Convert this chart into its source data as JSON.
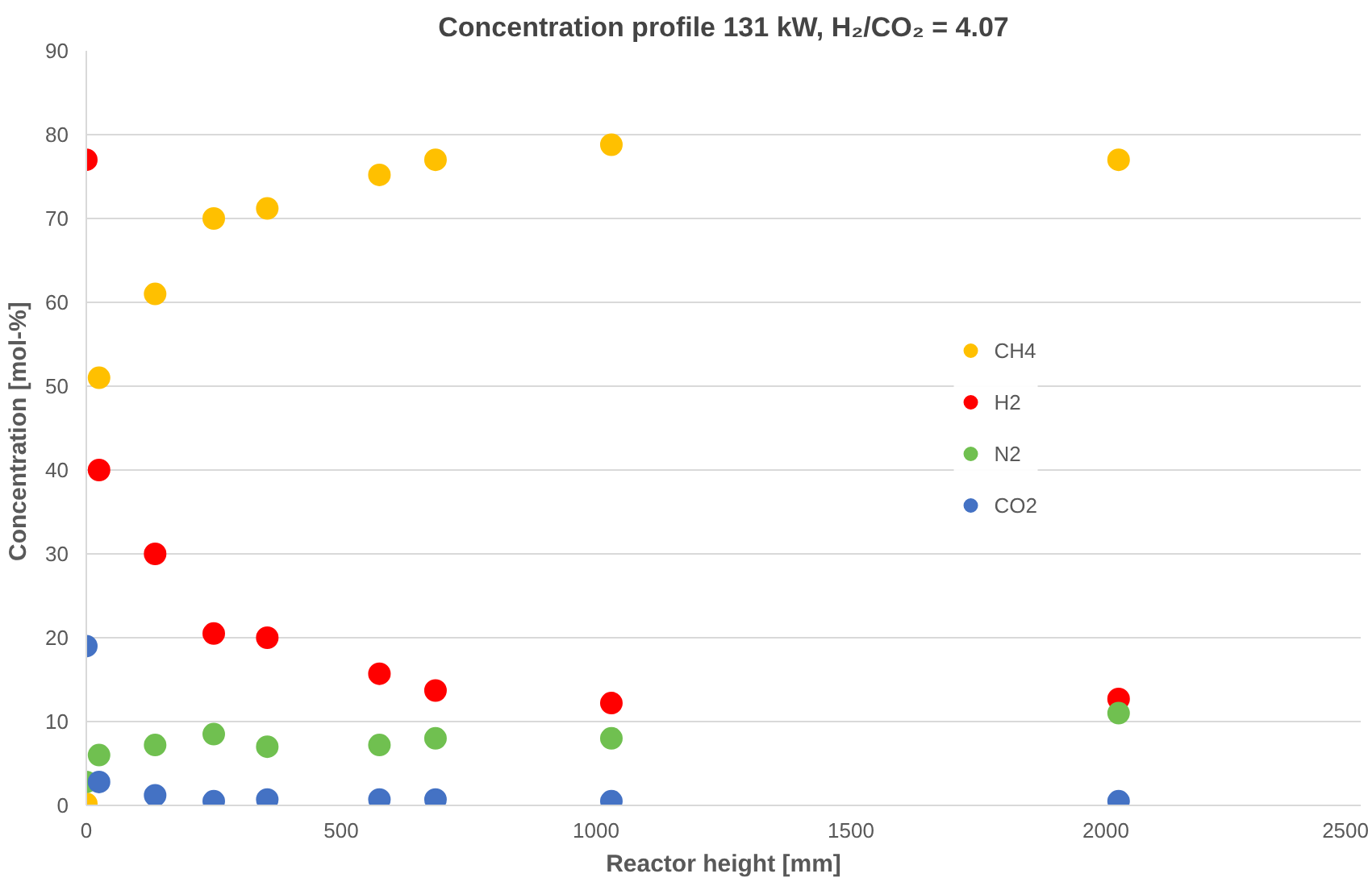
{
  "chart_data": {
    "type": "scatter",
    "title": "Concentration profile 131 kW, H₂/CO₂ = 4.07",
    "xlabel": "Reactor height [mm]",
    "ylabel": "Concentration  [mol-%]",
    "x": [
      0,
      25,
      135,
      250,
      355,
      575,
      685,
      1030,
      2025
    ],
    "series": [
      {
        "name": "CH4",
        "color": "#ffc000",
        "values": [
          0.2,
          51,
          61,
          70,
          71.2,
          75.2,
          77,
          78.8,
          77
        ]
      },
      {
        "name": "H2",
        "color": "#ff0000",
        "values": [
          77,
          40,
          30,
          20.5,
          20,
          15.7,
          13.7,
          12.2,
          12.7
        ]
      },
      {
        "name": "N2",
        "color": "#70c050",
        "values": [
          2.8,
          6,
          7.2,
          8.5,
          7,
          7.2,
          8,
          8,
          11
        ]
      },
      {
        "name": "CO2",
        "color": "#4472c4",
        "values": [
          19,
          2.8,
          1.2,
          0.5,
          0.7,
          0.7,
          0.7,
          0.5,
          0.5
        ]
      }
    ],
    "xlim": [
      0,
      2500
    ],
    "xticks": [
      0,
      500,
      1000,
      1500,
      2000,
      2500
    ],
    "ylim": [
      0,
      90
    ],
    "yticks": [
      0,
      10,
      20,
      30,
      40,
      50,
      60,
      70,
      80,
      90
    ],
    "grid": "y",
    "legend": "right",
    "marker": "circle"
  }
}
